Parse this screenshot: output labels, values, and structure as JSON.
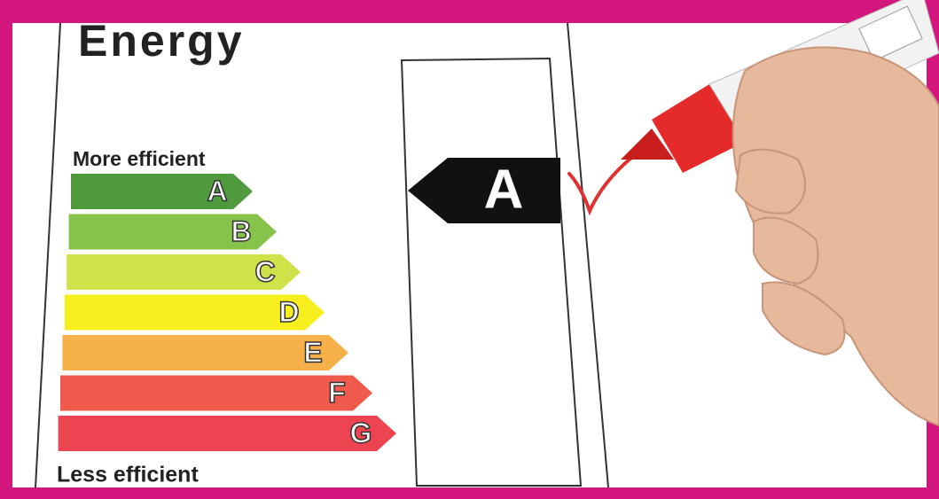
{
  "title": "Energy",
  "top_label": "More efficient",
  "bottom_label": "Less efficient",
  "ratings": [
    {
      "letter": "A",
      "color": "#4f9a3c"
    },
    {
      "letter": "B",
      "color": "#86c34a"
    },
    {
      "letter": "C",
      "color": "#cfe24a"
    },
    {
      "letter": "D",
      "color": "#f7ee1e"
    },
    {
      "letter": "E",
      "color": "#f6b04a"
    },
    {
      "letter": "F",
      "color": "#ef5a4c"
    },
    {
      "letter": "G",
      "color": "#ec4450"
    }
  ],
  "selected": {
    "letter": "A",
    "color": "#111111"
  }
}
